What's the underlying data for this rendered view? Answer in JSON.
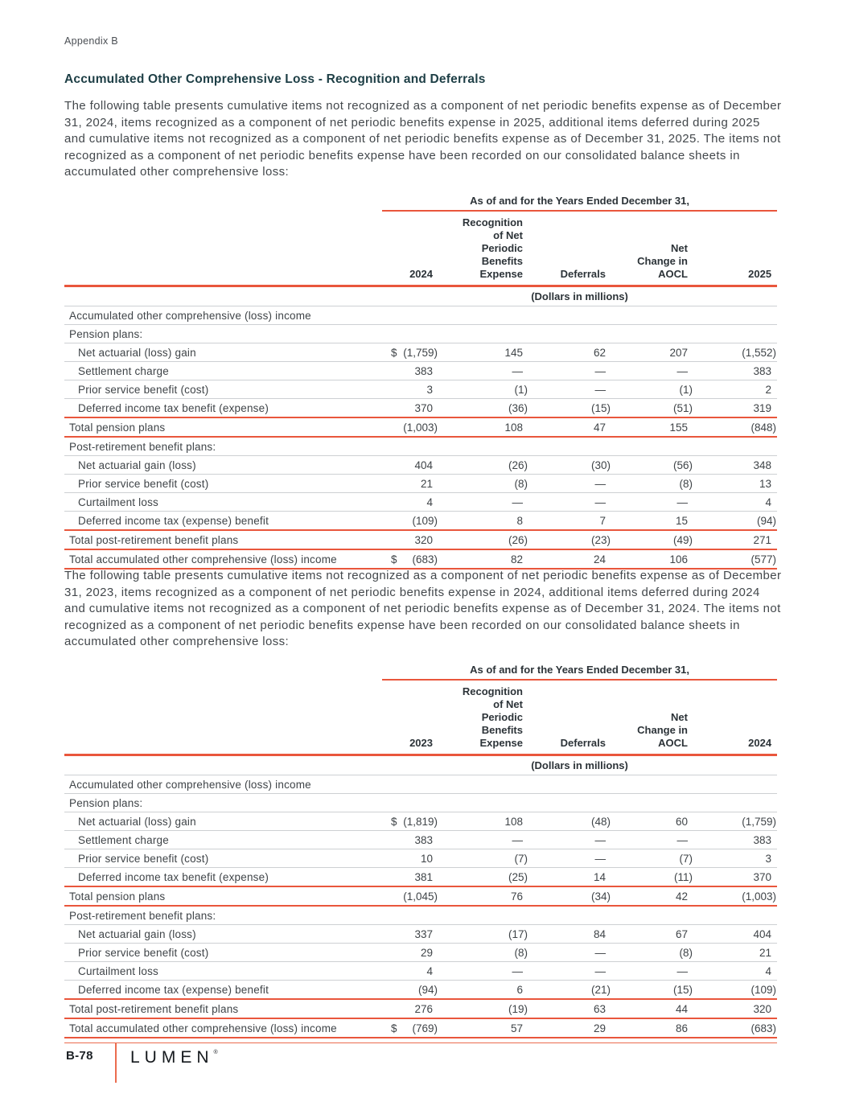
{
  "page": {
    "header_label": "Appendix B",
    "section_title": "Accumulated Other Comprehensive Loss - Recognition and Deferrals",
    "paragraph_1": "The following table presents cumulative items not recognized as a component of net periodic benefits expense as of December 31, 2024, items recognized as a component of net periodic benefits expense in 2025, additional items deferred during 2025 and cumulative items not recognized as a component of net periodic benefits expense as of December 31, 2025. The items not recognized as a component of net periodic benefits expense have been recorded on our consolidated balance sheets in accumulated other comprehensive loss:",
    "paragraph_2": "The following table presents cumulative items not recognized as a component of net periodic benefits expense as of December 31, 2023, items recognized as a component of net periodic benefits expense in 2024, additional items deferred during 2024 and cumulative items not recognized as a component of net periodic benefits expense as of December 31, 2024. The items not recognized as a component of net periodic benefits expense have been recorded on our consolidated balance sheets in accumulated other comprehensive loss:",
    "footer": {
      "page_number": "B-78",
      "logo_text": "LUMEN",
      "registered_mark": "®"
    }
  },
  "colors": {
    "accent_coral": "#e9563c",
    "heading_teal": "#1d3e45",
    "body_text": "#43484c",
    "rule_gray": "#cdd0d3"
  },
  "tables": [
    {
      "span_header": "As of and for the Years Ended December 31,",
      "columns": [
        "2024",
        "Recognition\nof Net\nPeriodic\nBenefits\nExpense",
        "Deferrals",
        "Net\nChange in\nAOCL",
        "2025"
      ],
      "units_note": "(Dollars in millions)",
      "rows": [
        {
          "label": "Accumulated other comprehensive (loss) income",
          "section": true
        },
        {
          "label": "Pension plans:",
          "section": true
        },
        {
          "label": "Net actuarial (loss) gain",
          "indent": 1,
          "cur": "$",
          "values": [
            "(1,759)",
            "145",
            "62",
            "207",
            "(1,552)"
          ]
        },
        {
          "label": "Settlement charge",
          "indent": 1,
          "values": [
            "383",
            "—",
            "—",
            "—",
            "383"
          ]
        },
        {
          "label": "Prior service benefit (cost)",
          "indent": 1,
          "values": [
            "3",
            "(1)",
            "—",
            "(1)",
            "2"
          ]
        },
        {
          "label": "Deferred income tax benefit (expense)",
          "indent": 1,
          "values": [
            "370",
            "(36)",
            "(15)",
            "(51)",
            "319"
          ],
          "rule": "coral"
        },
        {
          "label": "Total pension plans",
          "values": [
            "(1,003)",
            "108",
            "47",
            "155",
            "(848)"
          ],
          "rule": "coral"
        },
        {
          "label": "Post-retirement benefit plans:",
          "section": true
        },
        {
          "label": "Net actuarial gain (loss)",
          "indent": 1,
          "values": [
            "404",
            "(26)",
            "(30)",
            "(56)",
            "348"
          ]
        },
        {
          "label": "Prior service benefit (cost)",
          "indent": 1,
          "values": [
            "21",
            "(8)",
            "—",
            "(8)",
            "13"
          ]
        },
        {
          "label": "Curtailment loss",
          "indent": 1,
          "values": [
            "4",
            "—",
            "—",
            "—",
            "4"
          ]
        },
        {
          "label": "Deferred income tax (expense) benefit",
          "indent": 1,
          "values": [
            "(109)",
            "8",
            "7",
            "15",
            "(94)"
          ],
          "rule": "coral"
        },
        {
          "label": "Total post-retirement benefit plans",
          "values": [
            "320",
            "(26)",
            "(23)",
            "(49)",
            "271"
          ],
          "rule": "coral"
        },
        {
          "label": "Total accumulated other comprehensive (loss) income",
          "cur": "$",
          "values": [
            "(683)",
            "82",
            "24",
            "106",
            "(577)"
          ],
          "rule": "coral"
        }
      ]
    },
    {
      "span_header": "As of and for the Years Ended December 31,",
      "columns": [
        "2023",
        "Recognition\nof Net\nPeriodic\nBenefits\nExpense",
        "Deferrals",
        "Net\nChange in\nAOCL",
        "2024"
      ],
      "units_note": "(Dollars in millions)",
      "rows": [
        {
          "label": "Accumulated other comprehensive (loss) income",
          "section": true
        },
        {
          "label": "Pension plans:",
          "section": true
        },
        {
          "label": "Net actuarial (loss) gain",
          "indent": 1,
          "cur": "$",
          "values": [
            "(1,819)",
            "108",
            "(48)",
            "60",
            "(1,759)"
          ]
        },
        {
          "label": "Settlement charge",
          "indent": 1,
          "values": [
            "383",
            "—",
            "—",
            "—",
            "383"
          ]
        },
        {
          "label": "Prior service benefit (cost)",
          "indent": 1,
          "values": [
            "10",
            "(7)",
            "—",
            "(7)",
            "3"
          ]
        },
        {
          "label": "Deferred income tax benefit (expense)",
          "indent": 1,
          "values": [
            "381",
            "(25)",
            "14",
            "(11)",
            "370"
          ],
          "rule": "coral"
        },
        {
          "label": "Total pension plans",
          "values": [
            "(1,045)",
            "76",
            "(34)",
            "42",
            "(1,003)"
          ],
          "rule": "coral"
        },
        {
          "label": "Post-retirement benefit plans:",
          "section": true
        },
        {
          "label": "Net actuarial gain (loss)",
          "indent": 1,
          "values": [
            "337",
            "(17)",
            "84",
            "67",
            "404"
          ]
        },
        {
          "label": "Prior service benefit (cost)",
          "indent": 1,
          "values": [
            "29",
            "(8)",
            "—",
            "(8)",
            "21"
          ]
        },
        {
          "label": "Curtailment loss",
          "indent": 1,
          "values": [
            "4",
            "—",
            "—",
            "—",
            "4"
          ]
        },
        {
          "label": "Deferred income tax (expense) benefit",
          "indent": 1,
          "values": [
            "(94)",
            "6",
            "(21)",
            "(15)",
            "(109)"
          ],
          "rule": "coral"
        },
        {
          "label": "Total post-retirement benefit plans",
          "values": [
            "276",
            "(19)",
            "63",
            "44",
            "320"
          ],
          "rule": "coral"
        },
        {
          "label": "Total accumulated other comprehensive (loss) income",
          "cur": "$",
          "values": [
            "(769)",
            "57",
            "29",
            "86",
            "(683)"
          ],
          "rule": "coral"
        }
      ]
    }
  ]
}
